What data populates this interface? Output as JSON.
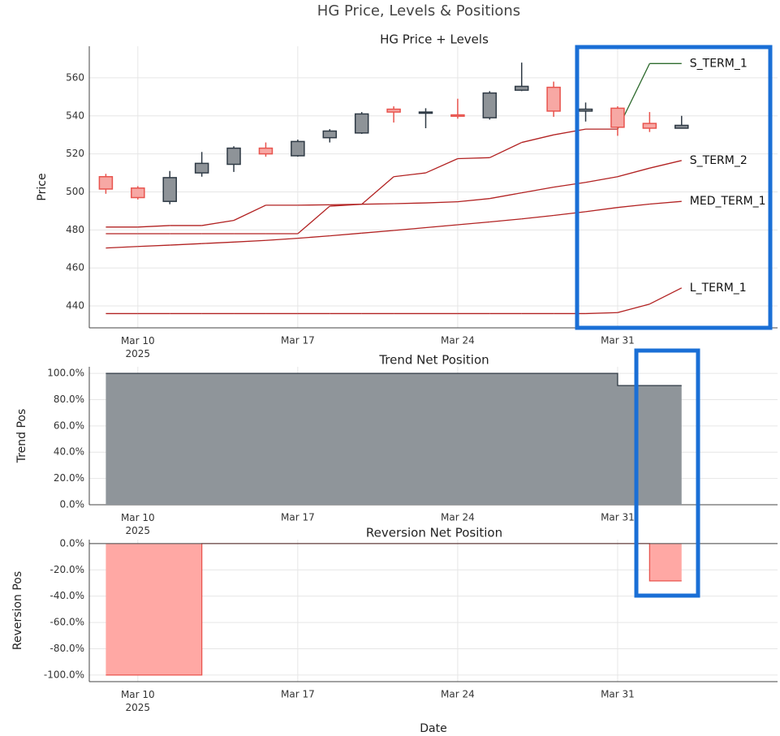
{
  "title": "HG Price, Levels & Positions",
  "chart_data": [
    {
      "type": "candlestick",
      "title": "HG Price + Levels",
      "ylabel": "Price",
      "x": [
        "2025-03-08T14:24",
        "2025-03-10T00:00",
        "2025-03-11T09:36",
        "2025-03-12T19:12",
        "2025-03-14T04:48",
        "2025-03-15T14:24",
        "2025-03-17T00:00",
        "2025-03-18T09:36",
        "2025-03-19T19:12",
        "2025-03-21T04:48",
        "2025-03-22T14:24",
        "2025-03-24T00:00",
        "2025-03-25T09:36",
        "2025-03-26T19:12",
        "2025-03-28T04:48",
        "2025-03-29T14:24",
        "2025-03-31T00:00",
        "2025-04-01T09:36",
        "2025-04-02T19:12"
      ],
      "open": [
        508,
        502,
        495,
        510,
        514.5,
        523,
        519,
        528.5,
        531,
        543.5,
        541.5,
        540.5,
        539,
        553.5,
        555,
        542.5,
        544,
        536,
        533.5
      ],
      "high": [
        509.5,
        503,
        511,
        521,
        524,
        526,
        527.5,
        533,
        542,
        545,
        544,
        549,
        553,
        568,
        558,
        547,
        545,
        542,
        540
      ],
      "low": [
        499,
        496,
        493.5,
        508,
        510.5,
        518.5,
        518.5,
        526,
        530.5,
        536.5,
        533.5,
        538.5,
        538,
        553,
        539.5,
        537,
        529.5,
        531.5,
        533.5
      ],
      "close": [
        501.5,
        497,
        507.5,
        515,
        523,
        520,
        526.5,
        532,
        541,
        542,
        542,
        539.8,
        552,
        555.5,
        542.5,
        543.5,
        534,
        533.5,
        535
      ],
      "increasing_color": "#8e9398",
      "increasing_line": "#2f3a45",
      "decreasing_color": "#f7a8a4",
      "decreasing_line": "#e8544e",
      "lines": [
        {
          "name": "S_TERM_1",
          "color": "#b22222",
          "values": [
            478,
            478,
            478,
            478,
            478,
            478,
            478,
            492.5,
            493.5,
            508,
            510,
            517.5,
            518,
            526,
            530,
            533,
            533,
            567.5,
            567.5
          ],
          "colors": [
            "#b22222",
            "#b22222",
            "#b22222",
            "#b22222",
            "#b22222",
            "#b22222",
            "#b22222",
            "#b22222",
            "#b22222",
            "#b22222",
            "#b22222",
            "#b22222",
            "#b22222",
            "#b22222",
            "#b22222",
            "#b22222",
            "#b22222",
            "#2e6b2e",
            "#2e6b2e"
          ]
        },
        {
          "name": "S_TERM_2",
          "color": "#b22222",
          "values": [
            481.5,
            481.5,
            482.3,
            482.3,
            485,
            493,
            493,
            493.2,
            493.5,
            493.8,
            494.2,
            494.8,
            496.5,
            499.5,
            502.5,
            505,
            508,
            512.5,
            516.5
          ]
        },
        {
          "name": "MED_TERM_1",
          "color": "#b22222",
          "values": [
            470.5,
            471.3,
            472,
            472.8,
            473.6,
            474.5,
            475.6,
            476.9,
            478.3,
            479.7,
            481.2,
            482.7,
            484.2,
            485.8,
            487.6,
            489.6,
            491.8,
            493.6,
            495
          ]
        },
        {
          "name": "L_TERM_1",
          "color": "#b22222",
          "values": [
            436,
            436,
            436,
            436,
            436,
            436,
            436,
            436,
            436,
            436,
            436,
            436,
            436,
            436,
            436,
            436,
            436.5,
            441,
            449.5
          ]
        }
      ],
      "xlim": [
        "2025-03-07T21:00",
        "2025-04-07T00:00"
      ],
      "xticks": [
        {
          "value": "2025-03-10T00:00",
          "label": "Mar 10\n2025"
        },
        {
          "value": "2025-03-17T00:00",
          "label": "Mar 17"
        },
        {
          "value": "2025-03-24T00:00",
          "label": "Mar 24"
        },
        {
          "value": "2025-03-31T00:00",
          "label": "Mar 31"
        }
      ],
      "ylim": [
        428.5,
        576.6
      ],
      "yticks": [
        440,
        460,
        480,
        500,
        520,
        540,
        560
      ],
      "grid": true
    },
    {
      "type": "step-area",
      "title": "Trend Net Position",
      "ylabel": "Trend Pos",
      "x": [
        "2025-03-08T14:24",
        "2025-03-10T00:00",
        "2025-03-11T09:36",
        "2025-03-12T19:12",
        "2025-03-14T04:48",
        "2025-03-15T14:24",
        "2025-03-17T00:00",
        "2025-03-18T09:36",
        "2025-03-19T19:12",
        "2025-03-21T04:48",
        "2025-03-22T14:24",
        "2025-03-24T00:00",
        "2025-03-25T09:36",
        "2025-03-26T19:12",
        "2025-03-28T04:48",
        "2025-03-29T14:24",
        "2025-03-31T00:00",
        "2025-04-01T09:36",
        "2025-04-02T19:12"
      ],
      "values": [
        100,
        100,
        100,
        100,
        100,
        100,
        100,
        100,
        100,
        100,
        100,
        100,
        100,
        100,
        100,
        100,
        90.7,
        90.7,
        90.7
      ],
      "color": "#8f959a",
      "line_color": "#2f3a45",
      "xlim": [
        "2025-03-07T21:00",
        "2025-04-07T00:00"
      ],
      "xticks": [
        {
          "value": "2025-03-10T00:00",
          "label": "Mar 10\n2025"
        },
        {
          "value": "2025-03-17T00:00",
          "label": "Mar 17"
        },
        {
          "value": "2025-03-24T00:00",
          "label": "Mar 24"
        },
        {
          "value": "2025-03-31T00:00",
          "label": "Mar 31"
        }
      ],
      "ylim": [
        0,
        105
      ],
      "yticks": [
        {
          "value": 0,
          "label": "0.0%"
        },
        {
          "value": 20,
          "label": "20.0%"
        },
        {
          "value": 40,
          "label": "40.0%"
        },
        {
          "value": 60,
          "label": "60.0%"
        },
        {
          "value": 80,
          "label": "80.0%"
        },
        {
          "value": 100,
          "label": "100.0%"
        }
      ],
      "grid": true
    },
    {
      "type": "step-area",
      "title": "Reversion Net Position",
      "ylabel": "Reversion Pos",
      "xlabel": "Date",
      "x": [
        "2025-03-08T14:24",
        "2025-03-10T00:00",
        "2025-03-11T09:36",
        "2025-03-12T19:12",
        "2025-03-14T04:48",
        "2025-03-15T14:24",
        "2025-03-17T00:00",
        "2025-03-18T09:36",
        "2025-03-19T19:12",
        "2025-03-21T04:48",
        "2025-03-22T14:24",
        "2025-03-24T00:00",
        "2025-03-25T09:36",
        "2025-03-26T19:12",
        "2025-03-28T04:48",
        "2025-03-29T14:24",
        "2025-03-31T00:00",
        "2025-04-01T09:36",
        "2025-04-02T19:12"
      ],
      "values": [
        -100,
        -100,
        -100,
        0,
        0,
        0,
        0,
        0,
        0,
        0,
        0,
        0,
        0,
        0,
        0,
        0,
        0,
        -28.4,
        -28.4
      ],
      "color": "#ffa8a4",
      "line_color": "#e8544e",
      "xlim": [
        "2025-03-07T21:00",
        "2025-04-07T00:00"
      ],
      "xticks": [
        {
          "value": "2025-03-10T00:00",
          "label": "Mar 10\n2025"
        },
        {
          "value": "2025-03-17T00:00",
          "label": "Mar 17"
        },
        {
          "value": "2025-03-24T00:00",
          "label": "Mar 24"
        },
        {
          "value": "2025-03-31T00:00",
          "label": "Mar 31"
        }
      ],
      "ylim": [
        -105,
        3
      ],
      "yticks": [
        {
          "value": -100,
          "label": "-100.0%"
        },
        {
          "value": -80,
          "label": "-80.0%"
        },
        {
          "value": -60,
          "label": "-60.0%"
        },
        {
          "value": -40,
          "label": "-40.0%"
        },
        {
          "value": -20,
          "label": "-20.0%"
        },
        {
          "value": 0,
          "label": "0.0%"
        }
      ],
      "grid": true,
      "zeroline": true
    }
  ]
}
